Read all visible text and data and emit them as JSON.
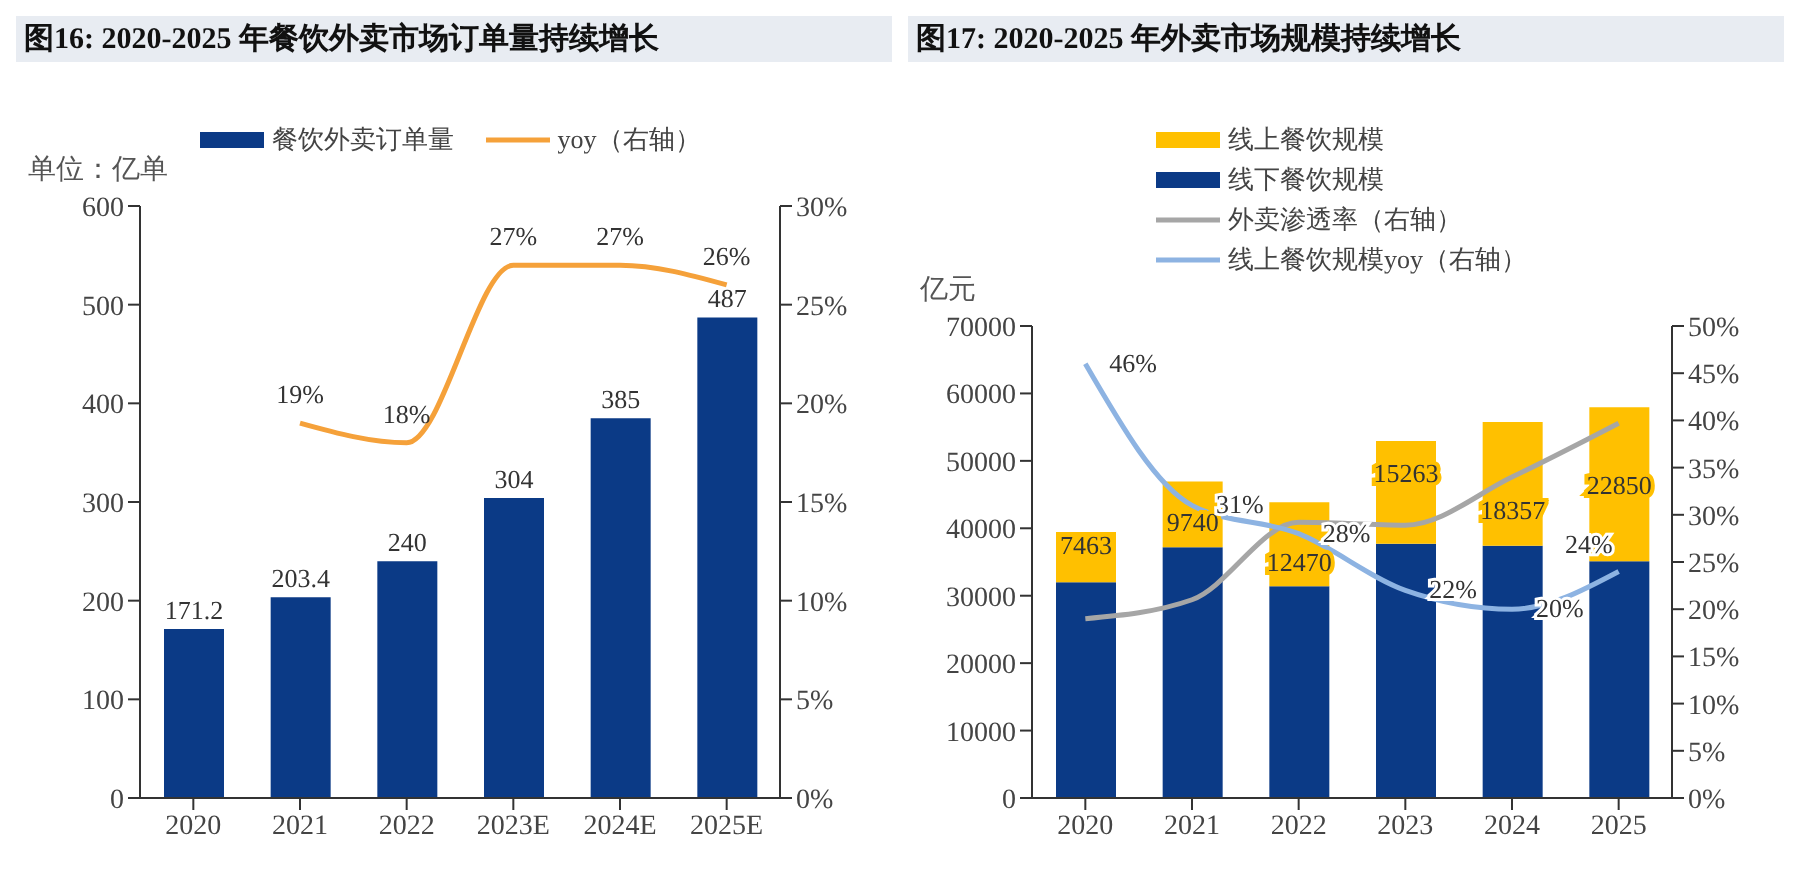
{
  "chart_data": [
    {
      "type": "bar",
      "title": "图16: 2020-2025 年餐饮外卖市场订单量持续增长",
      "ylabel": "单位：亿单",
      "categories": [
        "2020",
        "2021",
        "2022",
        "2023E",
        "2024E",
        "2025E"
      ],
      "series": [
        {
          "name": "餐饮外卖订单量",
          "color": "#0b3a86",
          "values": [
            171.2,
            203.4,
            240,
            304,
            385,
            487
          ],
          "value_labels": [
            "171.2",
            "203.4",
            "240",
            "304",
            "385",
            "487"
          ]
        },
        {
          "name": "yoy（右轴）",
          "type": "line",
          "axis": "y2",
          "color": "#f5a13a",
          "values": [
            null,
            19,
            18,
            27,
            27,
            26
          ],
          "value_labels": [
            null,
            "19%",
            "18%",
            "27%",
            "27%",
            "26%"
          ]
        }
      ],
      "ylim": [
        0,
        600
      ],
      "yticks": [
        0,
        100,
        200,
        300,
        400,
        500,
        600
      ],
      "y2lim": [
        0,
        30
      ],
      "y2ticks": [
        {
          "value": 0,
          "label": "0%"
        },
        {
          "value": 5,
          "label": "5%"
        },
        {
          "value": 10,
          "label": "10%"
        },
        {
          "value": 15,
          "label": "15%"
        },
        {
          "value": 20,
          "label": "20%"
        },
        {
          "value": 25,
          "label": "25%"
        },
        {
          "value": 30,
          "label": "30%"
        }
      ],
      "legend": "top",
      "grid": false,
      "marker": "none"
    },
    {
      "type": "bar",
      "title": "图17: 2020-2025 年外卖市场规模持续增长",
      "ylabel": "亿元",
      "stacked": true,
      "categories": [
        "2020",
        "2021",
        "2022",
        "2023",
        "2024",
        "2025"
      ],
      "series": [
        {
          "name": "线下餐饮规模",
          "color": "#0b3a86",
          "values": [
            32000,
            37200,
            31400,
            37700,
            37400,
            35100
          ]
        },
        {
          "name": "线上餐饮规模",
          "color": "#ffc000",
          "values": [
            7463,
            9740,
            12470,
            15263,
            18357,
            22850
          ],
          "value_labels": [
            "7463",
            "9740",
            "12470",
            "15263",
            "18357",
            "22850"
          ]
        },
        {
          "name": "外卖渗透率（右轴）",
          "type": "line",
          "axis": "y2",
          "color": "#a6a6a6",
          "values": [
            19,
            21,
            29.2,
            28.9,
            34,
            39.7
          ]
        },
        {
          "name": "线上餐饮规模yoy（右轴）",
          "type": "line",
          "axis": "y2",
          "color": "#8db3e2",
          "values": [
            46,
            31,
            28,
            22,
            20,
            24
          ],
          "value_labels": [
            "46%",
            "31%",
            "28%",
            "22%",
            "20%",
            "24%"
          ]
        }
      ],
      "ylim": [
        0,
        70000
      ],
      "yticks": [
        0,
        10000,
        20000,
        30000,
        40000,
        50000,
        60000,
        70000
      ],
      "y2lim": [
        0,
        50
      ],
      "y2ticks": [
        {
          "value": 0,
          "label": "0%"
        },
        {
          "value": 5,
          "label": "5%"
        },
        {
          "value": 10,
          "label": "10%"
        },
        {
          "value": 15,
          "label": "15%"
        },
        {
          "value": 20,
          "label": "20%"
        },
        {
          "value": 25,
          "label": "25%"
        },
        {
          "value": 30,
          "label": "30%"
        },
        {
          "value": 35,
          "label": "35%"
        },
        {
          "value": 40,
          "label": "40%"
        },
        {
          "value": 45,
          "label": "45%"
        },
        {
          "value": 50,
          "label": "50%"
        }
      ],
      "legend": "top",
      "grid": false,
      "marker": "none"
    }
  ]
}
